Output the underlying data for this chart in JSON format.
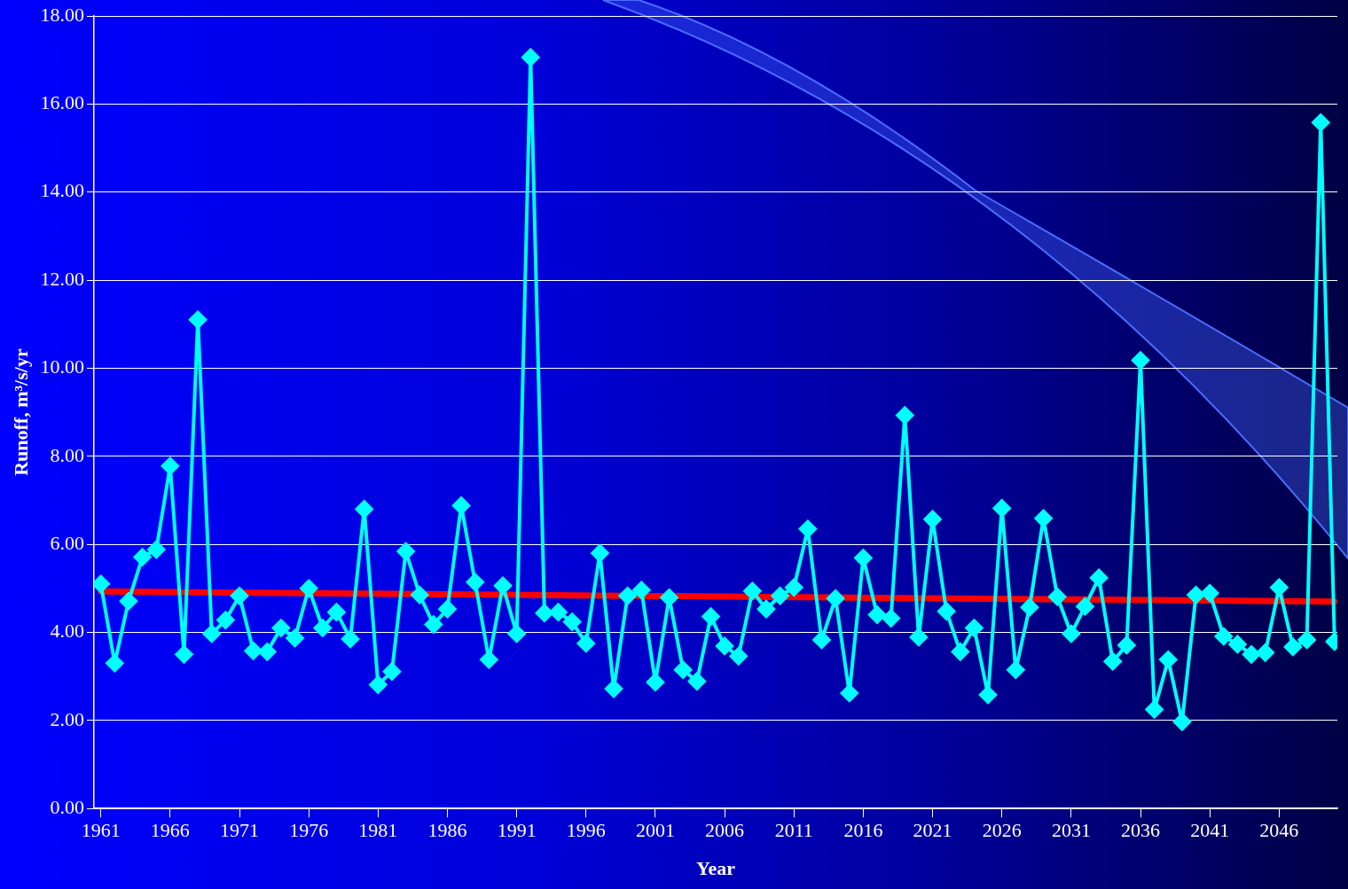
{
  "chart_data": {
    "type": "line",
    "xlabel": "Year",
    "ylabel": "Runoff, m³/s/yr",
    "x": [
      1961,
      1962,
      1963,
      1964,
      1965,
      1966,
      1967,
      1968,
      1969,
      1970,
      1971,
      1972,
      1973,
      1974,
      1975,
      1976,
      1977,
      1978,
      1979,
      1980,
      1981,
      1982,
      1983,
      1984,
      1985,
      1986,
      1987,
      1988,
      1989,
      1990,
      1991,
      1992,
      1993,
      1994,
      1995,
      1996,
      1997,
      1998,
      1999,
      2000,
      2001,
      2002,
      2003,
      2004,
      2005,
      2006,
      2007,
      2008,
      2009,
      2010,
      2011,
      2012,
      2013,
      2014,
      2015,
      2016,
      2017,
      2018,
      2019,
      2020,
      2021,
      2022,
      2023,
      2024,
      2025,
      2026,
      2027,
      2028,
      2029,
      2030,
      2031,
      2032,
      2033,
      2034,
      2035,
      2036,
      2037,
      2038,
      2039,
      2040,
      2041,
      2042,
      2043,
      2044,
      2045,
      2046,
      2047,
      2048,
      2049,
      2050
    ],
    "series": [
      {
        "color": "#00ffff",
        "marker": "diamond",
        "values": [
          5.1,
          3.3,
          4.71,
          5.71,
          5.88,
          7.78,
          3.5,
          11.1,
          3.97,
          4.28,
          4.83,
          3.58,
          3.56,
          4.1,
          3.87,
          5.0,
          4.1,
          4.46,
          3.85,
          6.8,
          2.81,
          3.11,
          5.84,
          4.85,
          4.18,
          4.53,
          6.88,
          5.14,
          3.38,
          5.06,
          3.97,
          17.06,
          4.44,
          4.46,
          4.24,
          3.75,
          5.8,
          2.72,
          4.83,
          4.96,
          2.87,
          4.79,
          3.15,
          2.89,
          4.36,
          3.69,
          3.46,
          4.94,
          4.53,
          4.83,
          5.02,
          6.35,
          3.83,
          4.77,
          2.62,
          5.69,
          4.4,
          4.32,
          8.93,
          3.89,
          6.57,
          4.48,
          3.56,
          4.1,
          2.58,
          6.82,
          3.15,
          4.57,
          6.59,
          4.81,
          3.97,
          4.59,
          5.24,
          3.34,
          3.71,
          10.18,
          2.25,
          3.38,
          1.97,
          4.85,
          4.89,
          3.91,
          3.73,
          3.5,
          3.54,
          5.02,
          3.67,
          3.83,
          15.58,
          3.79
        ]
      },
      {
        "type": "line",
        "color": "#ff0000",
        "marker": "none",
        "x": [
          1961,
          2050
        ],
        "values": [
          4.93,
          4.7
        ]
      }
    ],
    "xlim": [
      1960.5,
      2050.2
    ],
    "xticks": [
      1961,
      1966,
      1971,
      1976,
      1981,
      1986,
      1991,
      1996,
      2001,
      2006,
      2011,
      2016,
      2021,
      2026,
      2031,
      2036,
      2041,
      2046
    ],
    "ylim": [
      0,
      18
    ],
    "yticks": [
      {
        "value": 0,
        "label": "0.00"
      },
      {
        "value": 2,
        "label": "2.00"
      },
      {
        "value": 4,
        "label": "4.00"
      },
      {
        "value": 6,
        "label": "6.00"
      },
      {
        "value": 8,
        "label": "8.00"
      },
      {
        "value": 10,
        "label": "10.00"
      },
      {
        "value": 12,
        "label": "12.00"
      },
      {
        "value": 14,
        "label": "14.00"
      },
      {
        "value": 16,
        "label": "16.00"
      },
      {
        "value": 18,
        "label": "18.00"
      }
    ],
    "grid": "y",
    "legend": false
  }
}
